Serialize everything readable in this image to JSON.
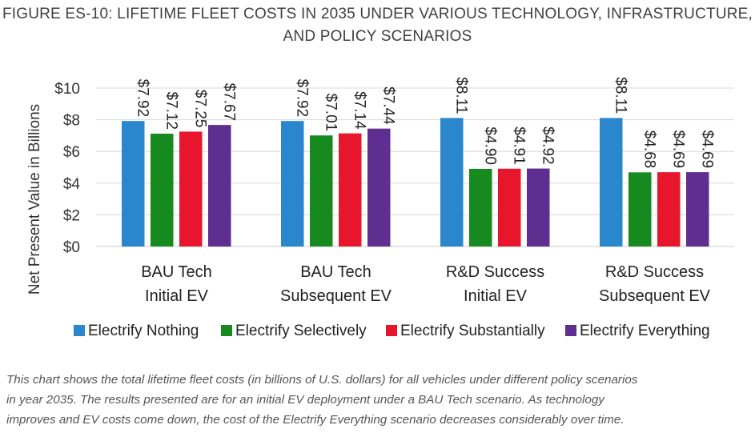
{
  "figure": {
    "title_lines": [
      "FIGURE ES-10: LIFETIME FLEET COSTS IN 2035 UNDER VARIOUS TECHNOLOGY, INFRASTRUCTURE,",
      "AND POLICY SCENARIOS"
    ],
    "caption_lines": [
      "This chart shows the total lifetime fleet costs (in billions of U.S. dollars) for all vehicles under different policy scenarios",
      "in year 2035. The results presented are for an initial EV deployment under a BAU Tech scenario. As technology",
      "improves and EV costs come down, the cost of the Electrify Everything scenario decreases considerably over time."
    ]
  },
  "chart_data": {
    "type": "bar",
    "ylabel": "Net Present Value in Billions",
    "xlabel": "",
    "ylim": [
      0,
      10
    ],
    "yticks": [
      {
        "value": 0,
        "label": "$0"
      },
      {
        "value": 2,
        "label": "$2"
      },
      {
        "value": 4,
        "label": "$4"
      },
      {
        "value": 6,
        "label": "$6"
      },
      {
        "value": 8,
        "label": "$8"
      },
      {
        "value": 10,
        "label": "$10"
      }
    ],
    "grid": true,
    "legend_position": "bottom",
    "categories": [
      [
        "BAU Tech",
        "Initial EV"
      ],
      [
        "BAU Tech",
        "Subsequent EV"
      ],
      [
        "R&D Success",
        "Initial EV"
      ],
      [
        "R&D Success",
        "Subsequent EV"
      ]
    ],
    "series": [
      {
        "name": "Electrify Nothing",
        "color": "#2A86CD",
        "values": [
          7.92,
          7.92,
          8.11,
          8.11
        ],
        "labels": [
          "$7.92",
          "$7.92",
          "$8.11",
          "$8.11"
        ]
      },
      {
        "name": "Electrify Selectively",
        "color": "#178A1F",
        "values": [
          7.12,
          7.01,
          4.9,
          4.68
        ],
        "labels": [
          "$7.12",
          "$7.01",
          "$4.90",
          "$4.68"
        ]
      },
      {
        "name": "Electrify Substantially",
        "color": "#E8162C",
        "values": [
          7.25,
          7.14,
          4.91,
          4.69
        ],
        "labels": [
          "$7.25",
          "$7.14",
          "$4.91",
          "$4.69"
        ]
      },
      {
        "name": "Electrify Everything",
        "color": "#5E2E91",
        "values": [
          7.67,
          7.44,
          4.92,
          4.69
        ],
        "labels": [
          "$7.67",
          "$7.44",
          "$4.92",
          "$4.69"
        ]
      }
    ]
  }
}
